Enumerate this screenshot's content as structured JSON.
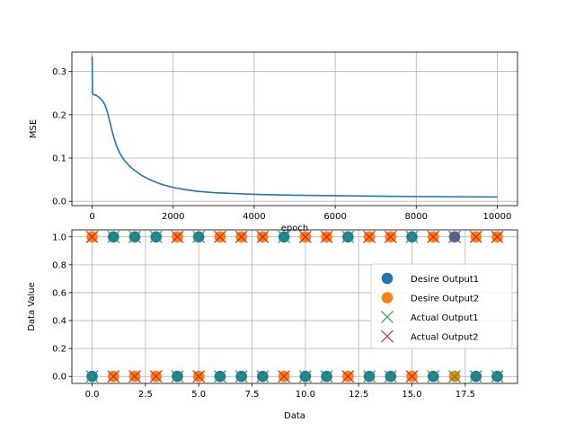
{
  "chart_data": [
    {
      "type": "line",
      "title": "",
      "xlabel": "epoch",
      "ylabel": "MSE",
      "xlim": [
        -500,
        10500
      ],
      "ylim": [
        -0.01,
        0.345
      ],
      "xticks": [
        0,
        2000,
        4000,
        6000,
        8000,
        10000
      ],
      "yticks": [
        0.0,
        0.1,
        0.2,
        0.3
      ],
      "xtick_labels": [
        "0",
        "2000",
        "4000",
        "6000",
        "8000",
        "10000"
      ],
      "ytick_labels": [
        "0.0",
        "0.1",
        "0.2",
        "0.3"
      ],
      "grid": true,
      "color": "#1f77b4",
      "series": [
        {
          "x": [
            0,
            5,
            10,
            30,
            60,
            100,
            150,
            200,
            260,
            320,
            380,
            440,
            500,
            560,
            620,
            680,
            740,
            800,
            900,
            1000,
            1200,
            1400,
            1600,
            1800,
            2000,
            2300,
            2600,
            3000,
            3500,
            4000,
            4500,
            5000,
            6000,
            7000,
            8000,
            9000,
            10000
          ],
          "y": [
            0.335,
            0.29,
            0.25,
            0.247,
            0.246,
            0.245,
            0.242,
            0.238,
            0.232,
            0.222,
            0.205,
            0.183,
            0.16,
            0.14,
            0.124,
            0.112,
            0.102,
            0.094,
            0.084,
            0.075,
            0.061,
            0.051,
            0.043,
            0.037,
            0.032,
            0.027,
            0.023,
            0.02,
            0.018,
            0.016,
            0.015,
            0.014,
            0.013,
            0.012,
            0.011,
            0.0105,
            0.01
          ]
        }
      ]
    },
    {
      "type": "scatter",
      "title": "",
      "xlabel": "Data",
      "ylabel": "Data Value",
      "xlim": [
        -0.95,
        19.95
      ],
      "ylim": [
        -0.05,
        1.05
      ],
      "xticks": [
        0,
        2.5,
        5,
        7.5,
        10,
        12.5,
        15,
        17.5
      ],
      "yticks": [
        0.0,
        0.2,
        0.4,
        0.6,
        0.8,
        1.0
      ],
      "xtick_labels": [
        "0.0",
        "2.5",
        "5.0",
        "7.5",
        "10.0",
        "12.5",
        "15.0",
        "17.5"
      ],
      "ytick_labels": [
        "0.0",
        "0.2",
        "0.4",
        "0.6",
        "0.8",
        "1.0"
      ],
      "grid": true,
      "legend_position": "center-right",
      "series": [
        {
          "name": "Desire Output1",
          "marker": "circle",
          "color": "#1f77b4",
          "x": [
            0,
            1,
            2,
            3,
            4,
            5,
            6,
            7,
            8,
            9,
            10,
            11,
            12,
            13,
            14,
            15,
            16,
            17,
            18,
            19
          ],
          "y": [
            0,
            1,
            1,
            1,
            0,
            1,
            0,
            0,
            0,
            1,
            0,
            0,
            1,
            0,
            0,
            1,
            0,
            1,
            0,
            0
          ]
        },
        {
          "name": "Desire Output2",
          "marker": "circle",
          "color": "#ff7f0e",
          "x": [
            0,
            1,
            2,
            3,
            4,
            5,
            6,
            7,
            8,
            9,
            10,
            11,
            12,
            13,
            14,
            15,
            16,
            17,
            18,
            19
          ],
          "y": [
            1,
            0,
            0,
            0,
            1,
            0,
            1,
            1,
            1,
            0,
            1,
            1,
            0,
            1,
            1,
            0,
            1,
            0,
            1,
            1
          ]
        },
        {
          "name": "Actual Output1",
          "marker": "x",
          "color": "#2ca02c",
          "x": [
            0,
            1,
            2,
            3,
            4,
            5,
            6,
            7,
            8,
            9,
            10,
            11,
            12,
            13,
            14,
            15,
            16,
            17,
            18,
            19
          ],
          "y": [
            0,
            1,
            1,
            1,
            0,
            1,
            0,
            0,
            0,
            1,
            0,
            0,
            1,
            0,
            0,
            1,
            0,
            0,
            0,
            0
          ]
        },
        {
          "name": "Actual Output2",
          "marker": "x",
          "color": "#d62728",
          "x": [
            0,
            1,
            2,
            3,
            4,
            5,
            6,
            7,
            8,
            9,
            10,
            11,
            12,
            13,
            14,
            15,
            16,
            17,
            18,
            19
          ],
          "y": [
            1,
            0,
            0,
            0,
            1,
            0,
            1,
            1,
            1,
            0,
            1,
            1,
            0,
            1,
            1,
            0,
            1,
            1,
            1,
            1
          ]
        }
      ]
    }
  ]
}
